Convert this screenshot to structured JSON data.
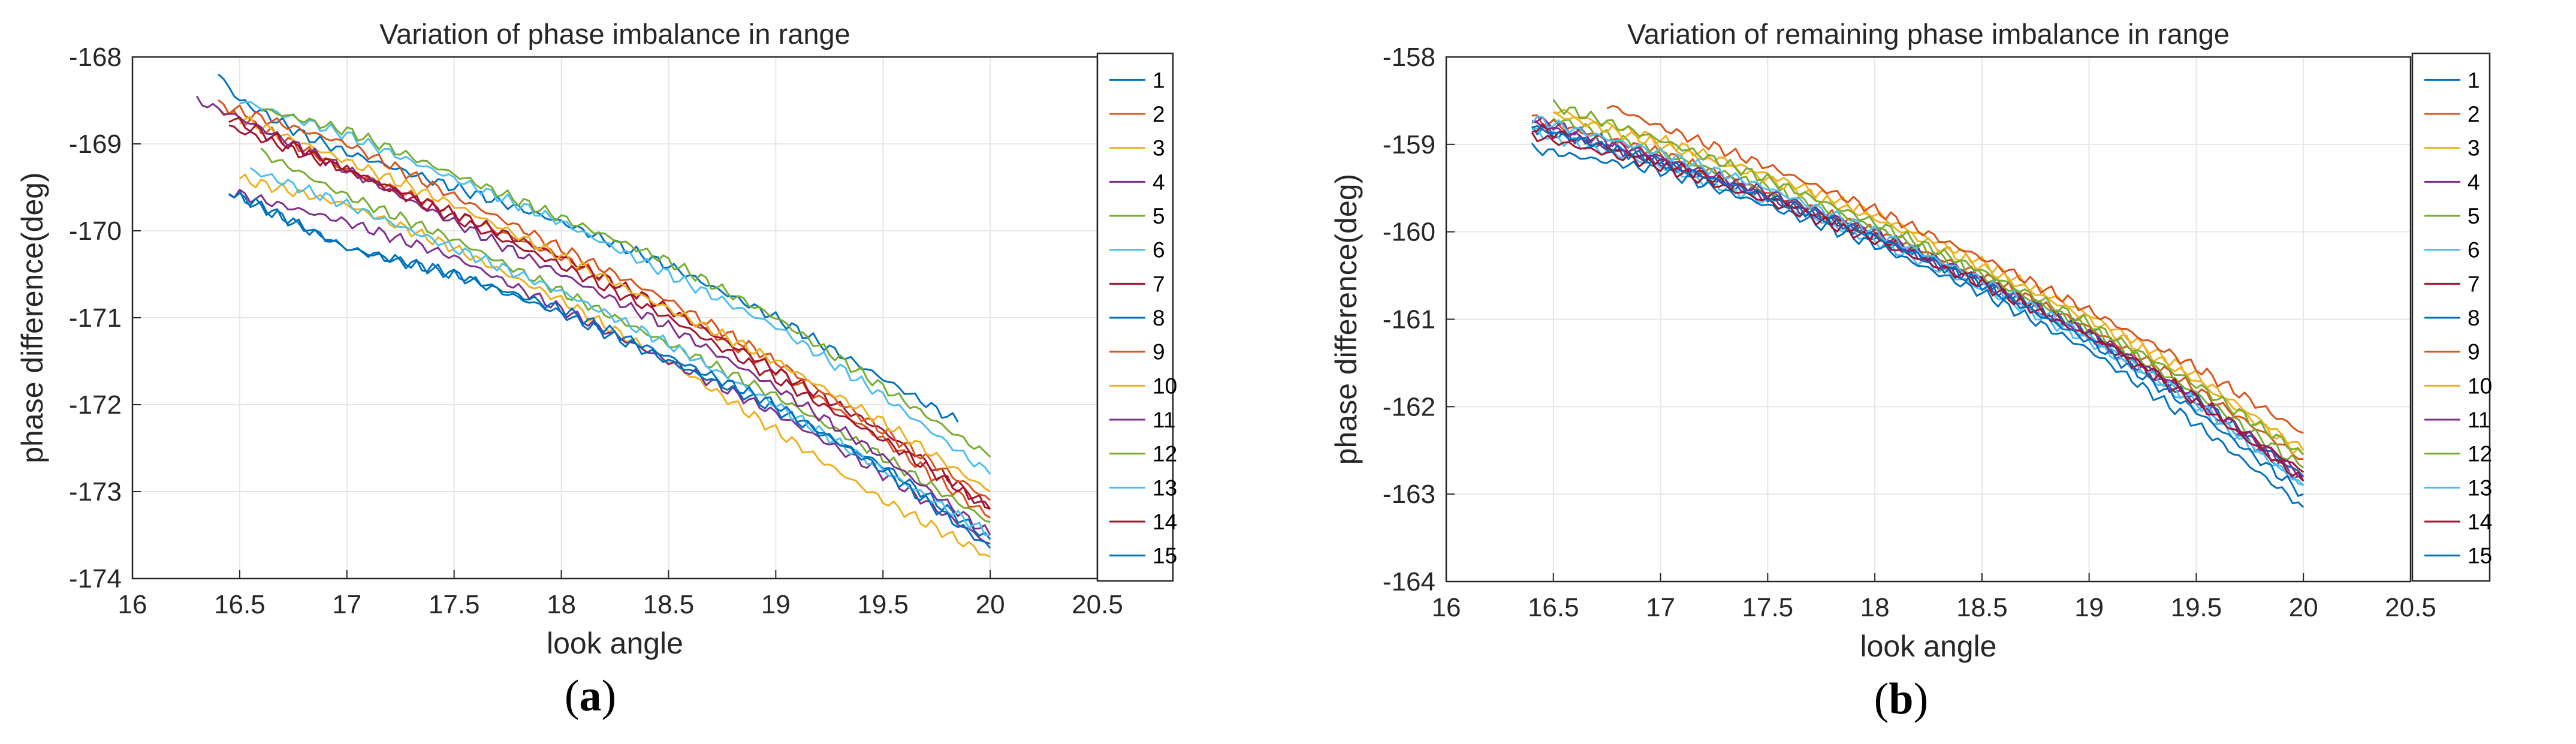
{
  "figure": {
    "panels": [
      {
        "caption_letter": "a",
        "caption_open": "(",
        "caption_close": ")"
      },
      {
        "caption_letter": "b",
        "caption_open": "(",
        "caption_close": ")"
      }
    ]
  },
  "chart_data": [
    {
      "type": "line",
      "title": "Variation of phase imbalance in range",
      "xlabel": "look angle",
      "ylabel": "phase difference(deg)",
      "xlim": [
        16,
        20.5
      ],
      "ylim": [
        -174,
        -168
      ],
      "xticks": [
        "16",
        "16.5",
        "17",
        "17.5",
        "18",
        "18.5",
        "19",
        "19.5",
        "20",
        "20.5"
      ],
      "yticks": [
        "-174",
        "-173",
        "-172",
        "-171",
        "-170",
        "-169",
        "-168"
      ],
      "grid": true,
      "legend_position": "right",
      "series": [
        {
          "name": "1",
          "color": "#0072BD",
          "x": [
            16.4,
            16.5,
            16.8,
            17.0,
            17.5,
            18.0,
            18.5,
            19.0,
            19.5,
            19.85
          ],
          "y": [
            -168.2,
            -168.5,
            -168.9,
            -169.1,
            -169.5,
            -169.9,
            -170.4,
            -171.0,
            -171.7,
            -172.2
          ]
        },
        {
          "name": "2",
          "color": "#D95319",
          "x": [
            16.4,
            16.5,
            17.0,
            17.5,
            18.0,
            18.5,
            19.0,
            19.5,
            20.0
          ],
          "y": [
            -168.6,
            -168.7,
            -169.3,
            -169.8,
            -170.3,
            -170.9,
            -171.6,
            -172.4,
            -173.3
          ]
        },
        {
          "name": "3",
          "color": "#EDB120",
          "x": [
            16.5,
            17.0,
            17.5,
            18.0,
            18.5,
            19.0,
            19.5,
            20.0
          ],
          "y": [
            -169.4,
            -169.7,
            -170.2,
            -170.8,
            -171.5,
            -172.3,
            -173.1,
            -173.75
          ]
        },
        {
          "name": "4",
          "color": "#7E2F8E",
          "x": [
            16.45,
            17.0,
            17.5,
            18.0,
            18.5,
            19.0,
            19.5,
            20.0
          ],
          "y": [
            -169.55,
            -169.9,
            -170.3,
            -170.9,
            -171.5,
            -172.1,
            -172.8,
            -173.6
          ]
        },
        {
          "name": "5",
          "color": "#77AC30",
          "x": [
            16.6,
            17.0,
            17.5,
            18.0,
            18.5,
            19.0,
            19.5,
            20.0
          ],
          "y": [
            -169.1,
            -169.6,
            -170.1,
            -170.7,
            -171.3,
            -171.9,
            -172.6,
            -173.35
          ]
        },
        {
          "name": "6",
          "color": "#4DBEEE",
          "x": [
            16.5,
            17.0,
            17.5,
            18.0,
            18.5,
            19.0,
            19.5,
            20.0
          ],
          "y": [
            -168.5,
            -168.9,
            -169.4,
            -169.9,
            -170.5,
            -171.1,
            -171.9,
            -172.8
          ]
        },
        {
          "name": "7",
          "color": "#A2142F",
          "x": [
            16.45,
            17.0,
            17.5,
            18.0,
            18.5,
            19.0,
            19.5,
            20.0
          ],
          "y": [
            -168.8,
            -169.3,
            -169.8,
            -170.3,
            -170.9,
            -171.6,
            -172.3,
            -173.2
          ]
        },
        {
          "name": "8",
          "color": "#0072BD",
          "x": [
            16.45,
            17.0,
            17.5,
            18.0,
            18.5,
            19.0,
            19.5,
            20.0
          ],
          "y": [
            -169.55,
            -170.2,
            -170.5,
            -170.95,
            -171.5,
            -172.05,
            -172.7,
            -173.55
          ]
        },
        {
          "name": "9",
          "color": "#D95319",
          "x": [
            16.4,
            17.0,
            17.5,
            18.0,
            18.5,
            19.0,
            19.5,
            20.0
          ],
          "y": [
            -168.55,
            -169.0,
            -169.6,
            -170.2,
            -170.8,
            -171.5,
            -172.3,
            -173.1
          ]
        },
        {
          "name": "10",
          "color": "#EDB120",
          "x": [
            16.5,
            17.0,
            17.5,
            18.0,
            18.5,
            19.0,
            19.5,
            20.0
          ],
          "y": [
            -168.7,
            -169.2,
            -169.7,
            -170.3,
            -170.9,
            -171.5,
            -172.2,
            -173.0
          ]
        },
        {
          "name": "11",
          "color": "#7E2F8E",
          "x": [
            16.3,
            16.5,
            17.0,
            17.5,
            18.0,
            18.5,
            19.0,
            19.5,
            20.0
          ],
          "y": [
            -168.5,
            -168.7,
            -169.3,
            -169.9,
            -170.5,
            -171.1,
            -171.8,
            -172.6,
            -173.5
          ]
        },
        {
          "name": "12",
          "color": "#77AC30",
          "x": [
            16.6,
            17.0,
            17.5,
            18.0,
            18.5,
            19.0,
            19.5,
            20.0
          ],
          "y": [
            -168.6,
            -168.85,
            -169.35,
            -169.85,
            -170.35,
            -171.0,
            -171.8,
            -172.6
          ]
        },
        {
          "name": "13",
          "color": "#4DBEEE",
          "x": [
            16.55,
            17.0,
            17.5,
            18.0,
            18.5,
            19.0,
            19.5,
            20.0
          ],
          "y": [
            -169.3,
            -169.7,
            -170.2,
            -170.7,
            -171.3,
            -172.0,
            -172.75,
            -173.5
          ]
        },
        {
          "name": "14",
          "color": "#A2142F",
          "x": [
            16.45,
            17.0,
            17.5,
            18.0,
            18.5,
            19.0,
            19.5,
            20.0
          ],
          "y": [
            -168.7,
            -169.3,
            -169.85,
            -170.4,
            -171.0,
            -171.7,
            -172.4,
            -173.2
          ]
        },
        {
          "name": "15",
          "color": "#0072BD",
          "x": [
            16.5,
            17.0,
            17.5,
            18.0,
            18.5,
            19.0,
            19.5,
            20.0
          ],
          "y": [
            -169.6,
            -170.2,
            -170.5,
            -170.9,
            -171.45,
            -172.0,
            -172.75,
            -173.65
          ]
        }
      ]
    },
    {
      "type": "line",
      "title": "Variation of remaining phase imbalance in range",
      "xlabel": "look angle",
      "ylabel": "phase difference(deg)",
      "xlim": [
        16,
        20.5
      ],
      "ylim": [
        -164,
        -158
      ],
      "xticks": [
        "16",
        "16.5",
        "17",
        "17.5",
        "18",
        "18.5",
        "19",
        "19.5",
        "20",
        "20.5"
      ],
      "yticks": [
        "-164",
        "-163",
        "-162",
        "-161",
        "-160",
        "-159",
        "-158"
      ],
      "grid": true,
      "legend_position": "right",
      "series": [
        {
          "name": "1",
          "color": "#0072BD",
          "x": [
            16.4,
            17.0,
            17.5,
            18.0,
            18.5,
            19.0,
            19.5,
            20.0
          ],
          "y": [
            -158.8,
            -159.2,
            -159.6,
            -160.05,
            -160.55,
            -161.15,
            -161.9,
            -162.8
          ]
        },
        {
          "name": "2",
          "color": "#D95319",
          "x": [
            16.4,
            17.0,
            17.5,
            18.0,
            18.5,
            19.0,
            19.5,
            20.0
          ],
          "y": [
            -158.7,
            -159.1,
            -159.55,
            -160.0,
            -160.5,
            -161.1,
            -161.8,
            -162.6
          ]
        },
        {
          "name": "3",
          "color": "#EDB120",
          "x": [
            16.5,
            17.0,
            17.5,
            18.0,
            18.5,
            19.0,
            19.5,
            20.0
          ],
          "y": [
            -158.6,
            -158.95,
            -159.35,
            -159.8,
            -160.35,
            -160.95,
            -161.65,
            -162.5
          ]
        },
        {
          "name": "4",
          "color": "#7E2F8E",
          "x": [
            16.4,
            17.0,
            17.5,
            18.0,
            18.5,
            19.0,
            19.5,
            20.0
          ],
          "y": [
            -158.75,
            -159.2,
            -159.6,
            -160.05,
            -160.6,
            -161.2,
            -161.95,
            -162.85
          ]
        },
        {
          "name": "5",
          "color": "#77AC30",
          "x": [
            16.5,
            17.0,
            17.5,
            18.0,
            18.5,
            19.0,
            19.5,
            20.0
          ],
          "y": [
            -158.7,
            -159.1,
            -159.5,
            -159.95,
            -160.5,
            -161.1,
            -161.85,
            -162.7
          ]
        },
        {
          "name": "6",
          "color": "#4DBEEE",
          "x": [
            16.4,
            17.0,
            17.5,
            18.0,
            18.5,
            19.0,
            19.5,
            20.0
          ],
          "y": [
            -158.85,
            -159.25,
            -159.65,
            -160.1,
            -160.65,
            -161.25,
            -162.0,
            -162.9
          ]
        },
        {
          "name": "7",
          "color": "#A2142F",
          "x": [
            16.4,
            17.0,
            17.5,
            18.0,
            18.5,
            19.0,
            19.5,
            20.0
          ],
          "y": [
            -158.8,
            -159.2,
            -159.6,
            -160.05,
            -160.55,
            -161.15,
            -161.9,
            -162.75
          ]
        },
        {
          "name": "8",
          "color": "#0072BD",
          "x": [
            16.4,
            17.0,
            17.5,
            18.0,
            18.5,
            19.0,
            19.5,
            20.0
          ],
          "y": [
            -159.05,
            -159.3,
            -159.7,
            -160.15,
            -160.7,
            -161.35,
            -162.2,
            -163.15
          ]
        },
        {
          "name": "9",
          "color": "#D95319",
          "x": [
            16.75,
            17.0,
            17.5,
            18.0,
            18.5,
            19.0,
            19.5,
            20.0
          ],
          "y": [
            -158.55,
            -158.8,
            -159.25,
            -159.75,
            -160.3,
            -160.9,
            -161.55,
            -162.3
          ]
        },
        {
          "name": "10",
          "color": "#EDB120",
          "x": [
            16.5,
            17.0,
            17.5,
            18.0,
            18.5,
            19.0,
            19.5,
            20.0
          ],
          "y": [
            -158.65,
            -159.0,
            -159.4,
            -159.85,
            -160.4,
            -161.0,
            -161.7,
            -162.55
          ]
        },
        {
          "name": "11",
          "color": "#7E2F8E",
          "x": [
            16.4,
            17.0,
            17.5,
            18.0,
            18.5,
            19.0,
            19.5,
            20.0
          ],
          "y": [
            -158.7,
            -159.15,
            -159.55,
            -160.0,
            -160.55,
            -161.15,
            -161.9,
            -162.8
          ]
        },
        {
          "name": "12",
          "color": "#77AC30",
          "x": [
            16.5,
            17.0,
            17.5,
            18.0,
            18.5,
            19.0,
            19.5,
            20.0
          ],
          "y": [
            -158.55,
            -158.95,
            -159.4,
            -159.9,
            -160.45,
            -161.05,
            -161.75,
            -162.55
          ]
        },
        {
          "name": "13",
          "color": "#4DBEEE",
          "x": [
            16.4,
            17.0,
            17.5,
            18.0,
            18.5,
            19.0,
            19.5,
            20.0
          ],
          "y": [
            -158.7,
            -159.1,
            -159.5,
            -160.0,
            -160.55,
            -161.2,
            -161.95,
            -162.9
          ]
        },
        {
          "name": "14",
          "color": "#A2142F",
          "x": [
            16.4,
            17.0,
            17.5,
            18.0,
            18.5,
            19.0,
            19.5,
            20.0
          ],
          "y": [
            -158.9,
            -159.25,
            -159.65,
            -160.1,
            -160.6,
            -161.2,
            -161.95,
            -162.85
          ]
        },
        {
          "name": "15",
          "color": "#0072BD",
          "x": [
            16.4,
            17.0,
            17.5,
            18.0,
            18.5,
            19.0,
            19.5,
            20.0
          ],
          "y": [
            -158.8,
            -159.2,
            -159.6,
            -160.05,
            -160.6,
            -161.25,
            -162.05,
            -163.0
          ]
        }
      ]
    }
  ]
}
